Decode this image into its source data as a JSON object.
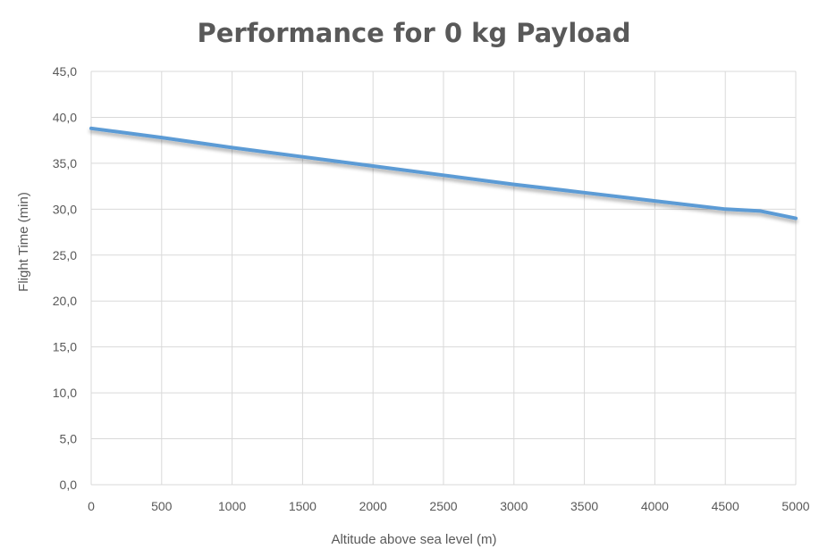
{
  "chart_data": {
    "type": "line",
    "title": "Performance for 0 kg Payload",
    "xlabel": "Altitude above sea level (m)",
    "ylabel": "Flight Time (min)",
    "xlim": [
      0,
      5000
    ],
    "ylim": [
      0,
      45
    ],
    "x_ticks": [
      "0",
      "500",
      "1000",
      "1500",
      "2000",
      "2500",
      "3000",
      "3500",
      "4000",
      "4500",
      "5000"
    ],
    "y_ticks": [
      "0,0",
      "5,0",
      "10,0",
      "15,0",
      "20,0",
      "25,0",
      "30,0",
      "35,0",
      "40,0",
      "45,0"
    ],
    "grid": true,
    "legend": "none",
    "series": [
      {
        "color": "#5b9bd5",
        "x": [
          0,
          500,
          1000,
          1500,
          2000,
          2500,
          3000,
          3500,
          4000,
          4500,
          4750,
          5000
        ],
        "y": [
          38.8,
          37.8,
          36.7,
          35.7,
          34.7,
          33.7,
          32.7,
          31.8,
          30.9,
          30.0,
          29.8,
          29.0
        ]
      }
    ]
  }
}
